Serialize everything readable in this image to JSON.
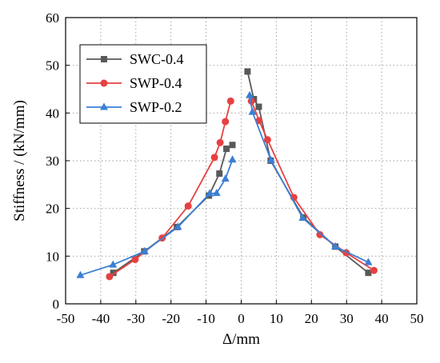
{
  "chart_data": {
    "type": "line",
    "title": "",
    "xlabel": "Δ/mm",
    "ylabel": "Stiffness / (kN/mm)",
    "xlim": [
      -50,
      50
    ],
    "ylim": [
      0,
      60
    ],
    "x_ticks": [
      "-50",
      "-40",
      "-30",
      "-20",
      "-10",
      "0",
      "10",
      "20",
      "30",
      "40",
      "50"
    ],
    "y_ticks": [
      "0",
      "10",
      "20",
      "30",
      "40",
      "50",
      "60"
    ],
    "grid": "dotted",
    "legend_position": "top-left",
    "series": [
      {
        "name": "SWC-0.4",
        "color": "#595959",
        "marker": "square",
        "branches": [
          [
            [
              -2.5,
              33.3
            ],
            [
              -4.2,
              32.5
            ],
            [
              -6.2,
              27.3
            ],
            [
              -9.2,
              22.7
            ],
            [
              -18.3,
              16.1
            ],
            [
              -27.6,
              11.0
            ],
            [
              -36.4,
              6.5
            ]
          ],
          [
            [
              1.8,
              48.7
            ],
            [
              3.6,
              42.9
            ],
            [
              5.0,
              41.3
            ],
            [
              8.4,
              30.0
            ],
            [
              17.7,
              18.1
            ],
            [
              26.8,
              12.0
            ],
            [
              36.2,
              6.5
            ]
          ]
        ]
      },
      {
        "name": "SWP-0.4",
        "color": "#e64141",
        "marker": "circle",
        "branches": [
          [
            [
              -3.0,
              42.5
            ],
            [
              -4.5,
              38.2
            ],
            [
              -6.0,
              33.8
            ],
            [
              -7.6,
              30.7
            ],
            [
              -15.1,
              20.5
            ],
            [
              -22.5,
              13.8
            ],
            [
              -30.2,
              9.3
            ],
            [
              -37.5,
              5.7
            ]
          ],
          [
            [
              2.9,
              42.5
            ],
            [
              5.1,
              38.4
            ],
            [
              7.5,
              34.4
            ],
            [
              15.0,
              22.3
            ],
            [
              22.4,
              14.5
            ],
            [
              29.9,
              10.7
            ],
            [
              37.8,
              7.0
            ]
          ]
        ]
      },
      {
        "name": "SWP-0.2",
        "color": "#3a7fd4",
        "marker": "triangle",
        "branches": [
          [
            [
              -2.5,
              30.2
            ],
            [
              -4.5,
              26.2
            ],
            [
              -7.0,
              23.2
            ],
            [
              -9.0,
              23.1
            ],
            [
              -18.0,
              16.1
            ],
            [
              -27.5,
              11.0
            ],
            [
              -36.5,
              8.2
            ],
            [
              -45.8,
              6.0
            ]
          ],
          [
            [
              2.4,
              43.7
            ],
            [
              3.2,
              40.2
            ],
            [
              8.5,
              30.1
            ],
            [
              17.5,
              18.0
            ],
            [
              26.8,
              12.0
            ],
            [
              36.2,
              8.7
            ]
          ]
        ]
      }
    ]
  }
}
